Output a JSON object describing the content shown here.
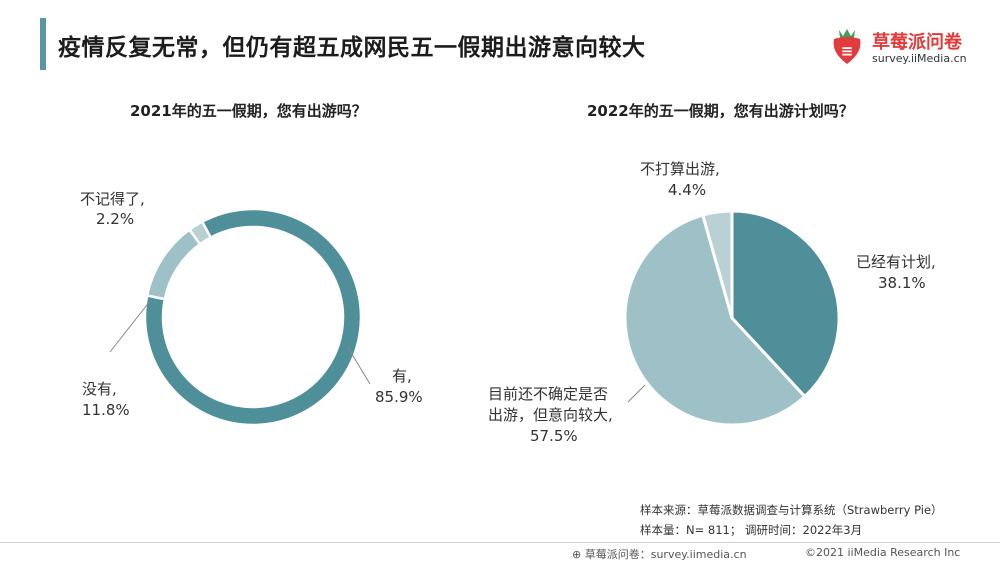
{
  "header": {
    "title": "疫情反复无常，但仍有超五成网民五一假期出游意向较大",
    "logo_name": "草莓派问卷",
    "logo_url": "survey.iiMedia.cn"
  },
  "chart_data": [
    {
      "type": "pie",
      "variant": "donut",
      "title": "2021年的五一假期，您有出游吗？",
      "slices": [
        {
          "name": "有,",
          "value": 85.9,
          "value_label": "85.9%",
          "color": "#4f8f99"
        },
        {
          "name": "没有,",
          "value": 11.8,
          "value_label": "11.8%",
          "color": "#9ec1c8"
        },
        {
          "name": "不记得了,",
          "value": 2.2,
          "value_label": "2.2%",
          "color": "#b9d0d4"
        }
      ]
    },
    {
      "type": "pie",
      "title": "2022年的五一假期，您有出游计划吗？",
      "slices": [
        {
          "name": "已经有计划,",
          "value": 38.1,
          "value_label": "38.1%",
          "color": "#4f8f99"
        },
        {
          "name": "目前还不确定是否出游，但意向较大,",
          "name_lines": [
            "目前还不确定是否",
            "出游，但意向较大,"
          ],
          "value": 57.5,
          "value_label": "57.5%",
          "color": "#9ec1c8"
        },
        {
          "name": "不打算出游,",
          "value": 4.4,
          "value_label": "4.4%",
          "color": "#b9d0d4"
        }
      ]
    }
  ],
  "source": {
    "line1": "样本来源：草莓派数据调查与计算系统（Strawberry Pie）",
    "line2": "样本量：N= 811；    调研时间：2022年3月"
  },
  "footer": {
    "left": "草莓派问卷：survey.iimedia.cn",
    "right": "©2021  iiMedia Research  Inc"
  }
}
